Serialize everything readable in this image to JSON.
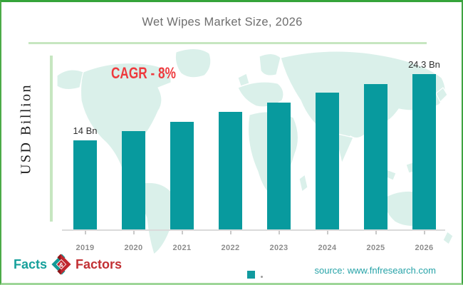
{
  "title": "Wet Wipes Market Size, 2026",
  "chart_data": {
    "type": "bar",
    "title": "Wet Wipes Market Size, 2026",
    "xlabel": "",
    "ylabel": "USD Billion",
    "categories": [
      "2019",
      "2020",
      "2021",
      "2022",
      "2023",
      "2024",
      "2025",
      "2026"
    ],
    "values": [
      14,
      15.5,
      16.9,
      18.4,
      19.9,
      21.4,
      22.8,
      24.3
    ],
    "bar_labels": [
      "14 Bn",
      "",
      "",
      "",
      "",
      "",
      "",
      "24.3 Bn"
    ],
    "annotation": "CAGR - 8%",
    "ylim": [
      0,
      26
    ],
    "grid": false,
    "legend": "none",
    "bar_color": "#089a9e"
  },
  "footer": {
    "logo": {
      "facts": "Facts",
      "ampersand": "&",
      "factors": "Factors"
    },
    "source": "source: www.fnfresearch.com"
  },
  "colors": {
    "bar": "#089a9e",
    "map": "#daf0ea",
    "axis_accent_green": "#c6e6c0",
    "cagr_red": "#ee3a3e",
    "title_gray": "#6e6e6e",
    "source_teal": "#27a3a8",
    "logo_teal": "#16a09b",
    "logo_red": "#c23034",
    "frame_green": "#35a43a"
  }
}
